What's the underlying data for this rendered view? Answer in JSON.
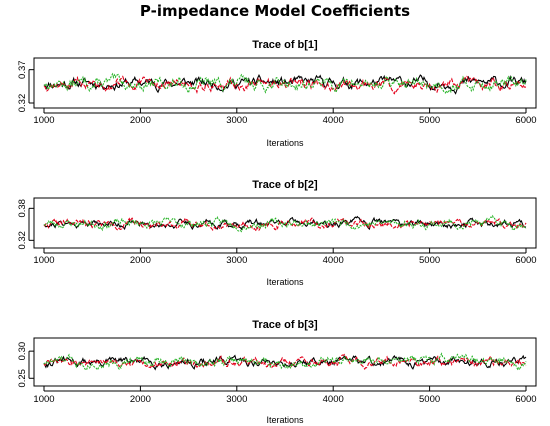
{
  "title": "P-impedance Model Coefficients",
  "colors": {
    "chain1": "#000000",
    "chain2": "#e3001b",
    "chain3": "#28b428"
  },
  "chart_data": [
    {
      "type": "line",
      "title": "Trace of b[1]",
      "xlabel": "Iterations",
      "ylabel": "",
      "xlim": [
        1000,
        6000
      ],
      "ylim": [
        0.32,
        0.38
      ],
      "x_ticks": [
        "1000",
        "2000",
        "3000",
        "4000",
        "5000",
        "6000"
      ],
      "y_ticks": [
        "0.32",
        "0.37"
      ],
      "series": [
        {
          "mean": 0.35,
          "spread": 0.011,
          "seed": 11
        },
        {
          "mean": 0.348,
          "spread": 0.011,
          "seed": 12
        },
        {
          "mean": 0.349,
          "spread": 0.012,
          "seed": 13
        }
      ]
    },
    {
      "type": "line",
      "title": "Trace of b[2]",
      "xlabel": "Iterations",
      "ylabel": "",
      "xlim": [
        1000,
        6000
      ],
      "ylim": [
        0.315,
        0.39
      ],
      "x_ticks": [
        "1000",
        "2000",
        "3000",
        "4000",
        "5000",
        "6000"
      ],
      "y_ticks": [
        "0.32",
        "0.38"
      ],
      "series": [
        {
          "mean": 0.352,
          "spread": 0.01,
          "seed": 21
        },
        {
          "mean": 0.351,
          "spread": 0.01,
          "seed": 22
        },
        {
          "mean": 0.352,
          "spread": 0.011,
          "seed": 23
        }
      ]
    },
    {
      "type": "line",
      "title": "Trace of b[3]",
      "xlabel": "Iterations",
      "ylabel": "",
      "xlim": [
        1000,
        6000
      ],
      "ylim": [
        0.245,
        0.315
      ],
      "x_ticks": [
        "1000",
        "2000",
        "3000",
        "4000",
        "5000",
        "6000"
      ],
      "y_ticks": [
        "0.25",
        "0.30"
      ],
      "series": [
        {
          "mean": 0.28,
          "spread": 0.011,
          "seed": 31
        },
        {
          "mean": 0.279,
          "spread": 0.011,
          "seed": 32
        },
        {
          "mean": 0.281,
          "spread": 0.012,
          "seed": 33
        }
      ]
    }
  ]
}
